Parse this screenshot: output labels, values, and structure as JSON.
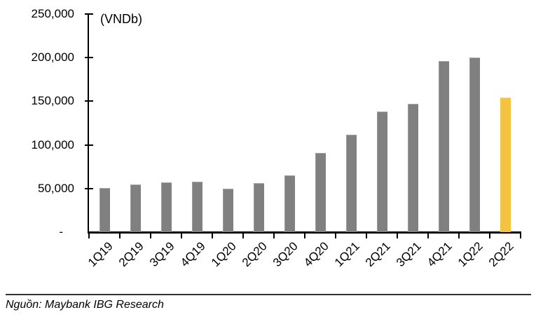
{
  "chart_data": {
    "type": "bar",
    "title": "",
    "unit_label": "(VNDb)",
    "categories": [
      "1Q19",
      "2Q19",
      "3Q19",
      "4Q19",
      "1Q20",
      "2Q20",
      "3Q20",
      "4Q20",
      "1Q21",
      "2Q21",
      "3Q21",
      "4Q21",
      "1Q22",
      "2Q22"
    ],
    "values": [
      50500,
      55000,
      57000,
      58000,
      50000,
      56000,
      65000,
      91000,
      111500,
      138000,
      147000,
      196000,
      200500,
      154000
    ],
    "highlight_category": "2Q22",
    "highlight_index": 13,
    "bar_color": "#808080",
    "highlight_color": "#F4C342",
    "ylim": [
      0,
      250000
    ],
    "ytick_step": 50000,
    "ytick_labels_top_to_bottom": [
      "250,000",
      "200,000",
      "150,000",
      "100,000",
      "50,000",
      "-"
    ],
    "zero_tick_label": "-",
    "grid": false,
    "legend": "none",
    "xlabel_rotation_deg": -45
  },
  "footer": {
    "source_text": "Nguồn: Maybank IBG Research"
  }
}
